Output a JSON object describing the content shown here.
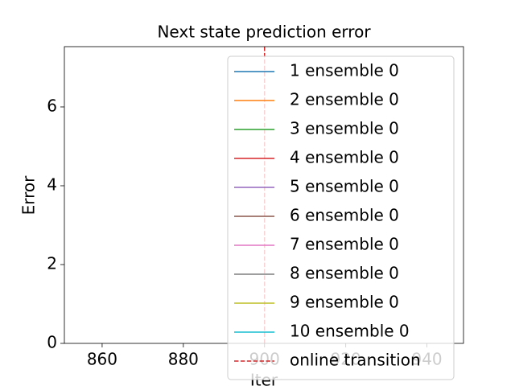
{
  "chart_data": {
    "type": "line",
    "title": "Next state prediction error",
    "x_label": "Iter",
    "y_label": "Error",
    "xlim": [
      850.7,
      949
    ],
    "ylim": [
      0,
      7.53
    ],
    "xticks": [
      860,
      880,
      900,
      920,
      940
    ],
    "yticks": [
      0,
      2,
      4,
      6
    ],
    "legend": "upper right",
    "series": [
      {
        "name": "1 ensemble 0",
        "color": "#1f77b4",
        "x": [],
        "values": []
      },
      {
        "name": "2 ensemble 0",
        "color": "#ff7f0e",
        "x": [],
        "values": []
      },
      {
        "name": "3 ensemble 0",
        "color": "#2ca02c",
        "x": [],
        "values": []
      },
      {
        "name": "4 ensemble 0",
        "color": "#d62728",
        "x": [],
        "values": []
      },
      {
        "name": "5 ensemble 0",
        "color": "#9467bd",
        "x": [],
        "values": []
      },
      {
        "name": "6 ensemble 0",
        "color": "#8c564b",
        "x": [],
        "values": []
      },
      {
        "name": "7 ensemble 0",
        "color": "#e377c2",
        "x": [],
        "values": []
      },
      {
        "name": "8 ensemble 0",
        "color": "#7f7f7f",
        "x": [],
        "values": []
      },
      {
        "name": "9 ensemble 0",
        "color": "#bcbd22",
        "x": [],
        "values": []
      },
      {
        "name": "10 ensemble 0",
        "color": "#17becf",
        "x": [],
        "values": []
      }
    ],
    "vlines": [
      {
        "name": "online transition",
        "color": "#d62728",
        "x": 900
      }
    ]
  }
}
